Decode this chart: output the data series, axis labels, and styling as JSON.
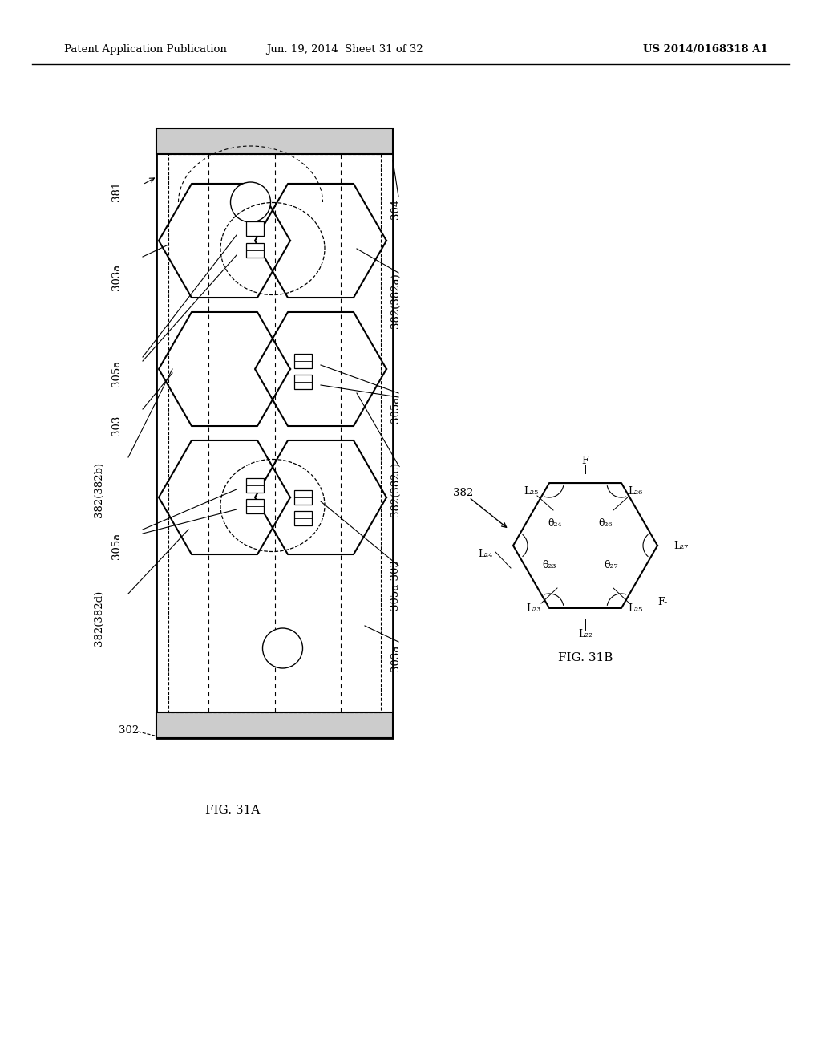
{
  "header_left": "Patent Application Publication",
  "header_mid": "Jun. 19, 2014  Sheet 31 of 32",
  "header_right": "US 2014/0168318 A1",
  "fig31a_label": "FIG. 31A",
  "fig31b_label": "FIG. 31B",
  "bg_color": "#ffffff",
  "line_color": "#000000"
}
